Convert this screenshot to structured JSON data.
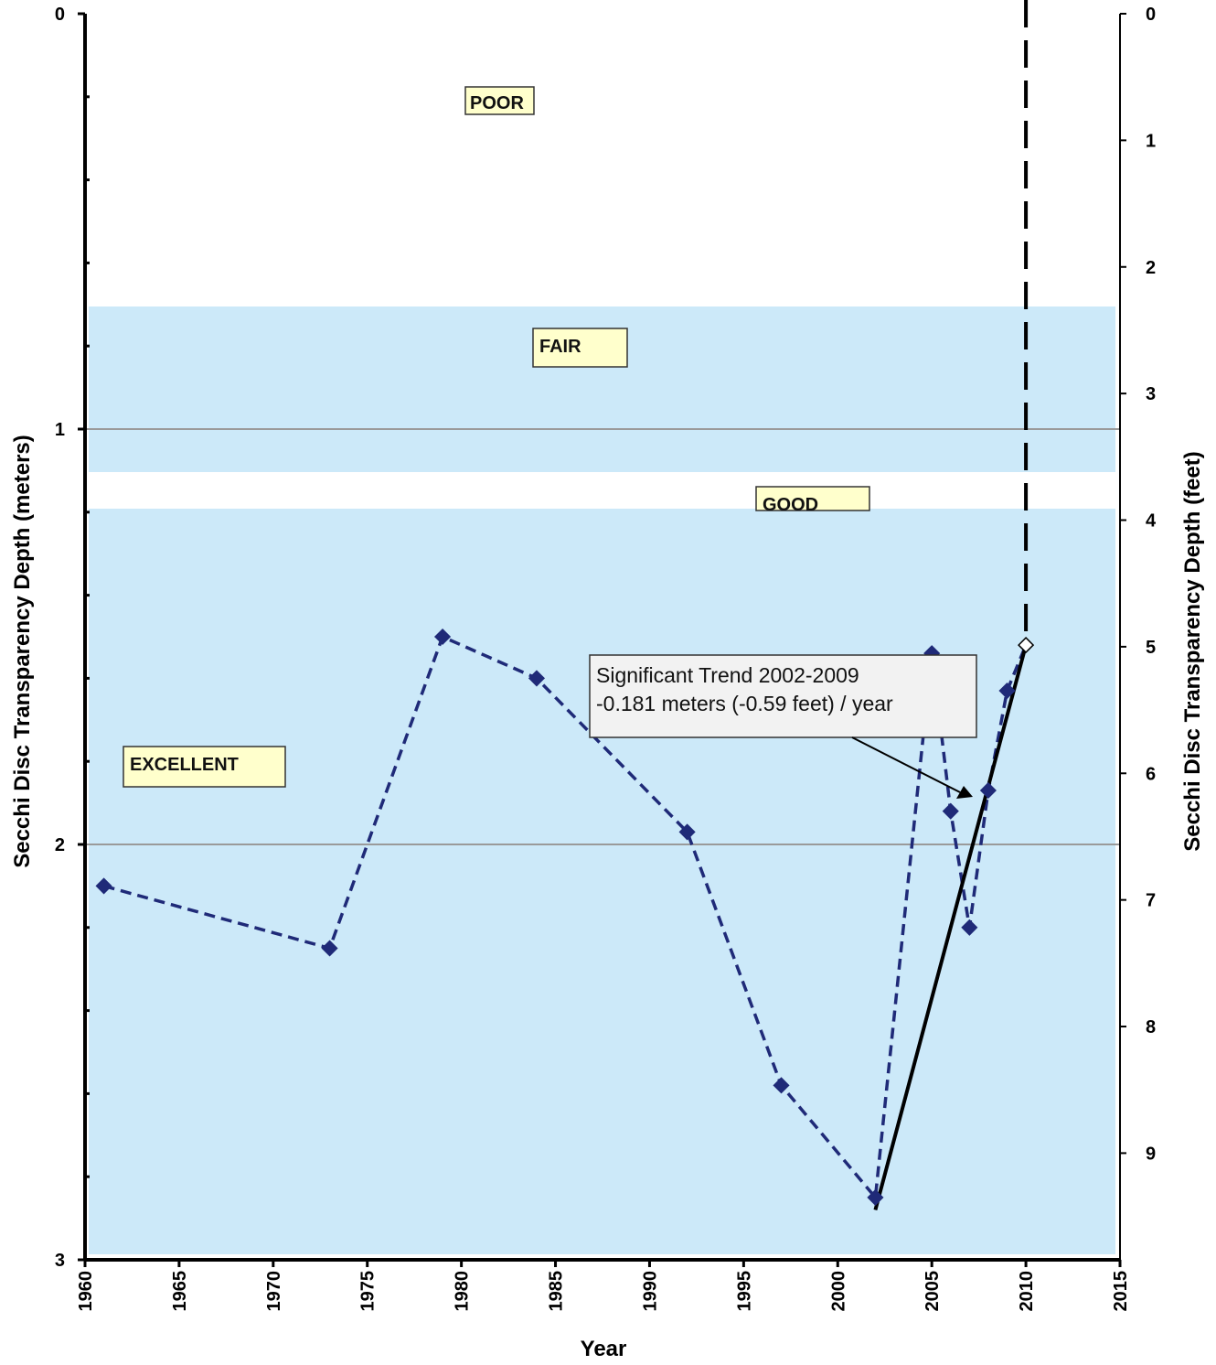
{
  "chart_data": {
    "type": "line",
    "ylabel_left": "Secchi Disc Transparency Depth (meters)",
    "ylabel_right": "Secchi Disc Transparency Depth (feet)",
    "xlabel": "Year",
    "xlim": [
      1960,
      2015
    ],
    "xticks": [
      "1960",
      "1965",
      "1970",
      "1975",
      "1980",
      "1985",
      "1990",
      "1995",
      "2000",
      "2005",
      "2010",
      "2015"
    ],
    "ylim_left": [
      0,
      3
    ],
    "yticks_left": [
      "0",
      "1",
      "2",
      "3"
    ],
    "ylim_right_feet": [
      0,
      9.84
    ],
    "yticks_right": [
      "0",
      "1",
      "2",
      "3",
      "4",
      "5",
      "6",
      "7",
      "8",
      "9"
    ],
    "y_inverted": true,
    "grid": "horizontal at 1 and 2 m",
    "zones": [
      {
        "label": "POOR",
        "from_m": 0,
        "to_m": 0.7,
        "color": "#ffffff"
      },
      {
        "label": "FAIR",
        "from_m": 0.7,
        "to_m": 1.1,
        "color": "#cce9f9"
      },
      {
        "label": "GOOD",
        "from_m": 1.1,
        "to_m": 1.2,
        "color": "#ffffff"
      },
      {
        "label": "EXCELLENT",
        "from_m": 1.2,
        "to_m": 3.0,
        "color": "#cce9f9"
      }
    ],
    "series": [
      {
        "x": [
          1961,
          1973,
          1979,
          1984,
          1992,
          1997,
          2002,
          2005,
          2006,
          2007,
          2008,
          2009,
          2010
        ],
        "y": [
          2.1,
          2.25,
          1.5,
          1.6,
          1.97,
          2.58,
          2.85,
          1.54,
          1.92,
          2.2,
          1.87,
          1.63,
          1.52
        ],
        "color": "#1f2a78",
        "style": "dashed",
        "marker": "diamond"
      }
    ],
    "trend_line": {
      "x": [
        2002,
        2010
      ],
      "y": [
        2.88,
        1.52
      ],
      "color": "#000000"
    },
    "vertical_dashed_line_x": 2010,
    "annotation": {
      "line1": "Significant Trend 2002-2009",
      "line2": "-0.181 meters (-0.59 feet) / year"
    }
  }
}
